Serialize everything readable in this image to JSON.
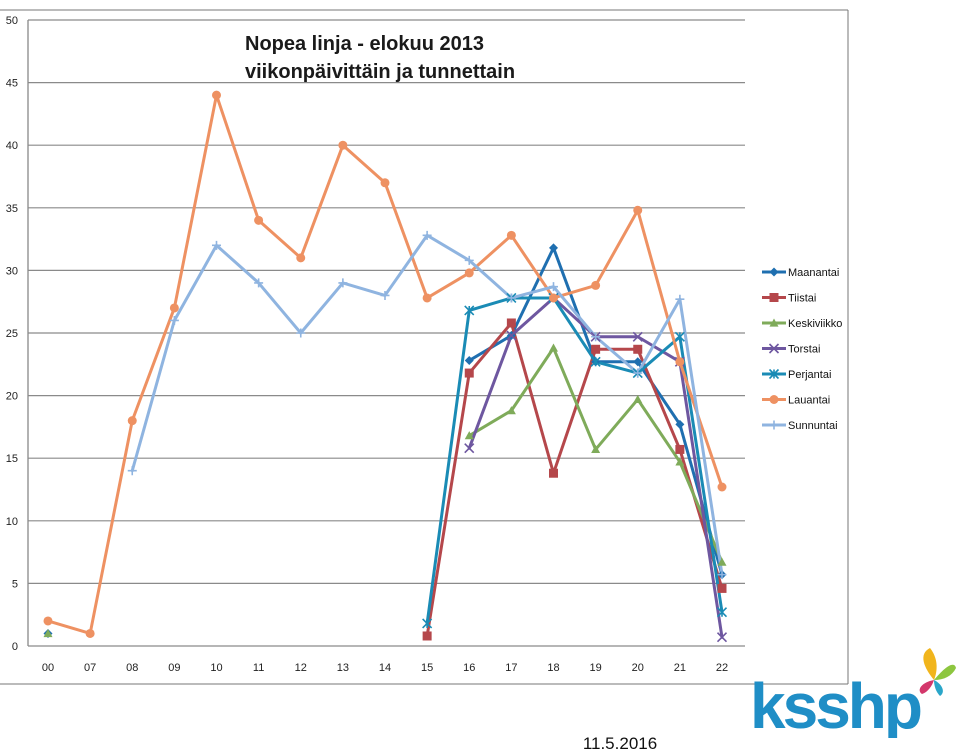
{
  "date": "11.5.2016",
  "logo_text": "ksshp",
  "colors": {
    "Maanantai": "#1f6fb0",
    "Tiistai": "#b5474b",
    "Keskiviikko": "#7fab5a",
    "Torstai": "#6e57a0",
    "Perjantai": "#1a8bb5",
    "Lauantai": "#ee9162",
    "Sunnuntai": "#8fb4e0",
    "logo_blue": "#1f8ec6"
  },
  "chart_data": {
    "type": "line",
    "title": "Nopea linja - elokuu 2013",
    "subtitle": "viikonpäivittäin ja tunnettain",
    "xlabel": "",
    "ylabel": "",
    "ylim": [
      0,
      50
    ],
    "yticks": [
      "0",
      "5",
      "10",
      "15",
      "20",
      "25",
      "30",
      "35",
      "40",
      "45",
      "50"
    ],
    "categories": [
      "00",
      "07",
      "08",
      "09",
      "10",
      "11",
      "12",
      "13",
      "14",
      "15",
      "16",
      "17",
      "18",
      "19",
      "20",
      "21",
      "22"
    ],
    "grid": true,
    "legend_position": "right",
    "series": [
      {
        "name": "Maanantai",
        "marker": "diamond",
        "values": [
          1,
          null,
          null,
          null,
          null,
          null,
          null,
          null,
          null,
          null,
          22.8,
          24.8,
          31.8,
          22.7,
          22.7,
          17.7,
          5.7
        ]
      },
      {
        "name": "Tiistai",
        "marker": "square",
        "values": [
          null,
          null,
          null,
          null,
          null,
          null,
          null,
          null,
          null,
          0.8,
          21.8,
          25.8,
          13.8,
          23.7,
          23.7,
          15.7,
          4.6
        ]
      },
      {
        "name": "Keskiviikko",
        "marker": "triangle",
        "values": [
          1,
          null,
          null,
          null,
          null,
          null,
          null,
          null,
          null,
          null,
          16.8,
          18.8,
          23.8,
          15.7,
          19.7,
          14.7,
          6.7
        ]
      },
      {
        "name": "Torstai",
        "marker": "x",
        "values": [
          null,
          null,
          null,
          null,
          null,
          null,
          null,
          null,
          null,
          null,
          15.8,
          24.8,
          27.8,
          24.7,
          24.7,
          22.7,
          0.7
        ]
      },
      {
        "name": "Perjantai",
        "marker": "star",
        "values": [
          null,
          null,
          null,
          null,
          null,
          null,
          null,
          null,
          null,
          1.8,
          26.8,
          27.8,
          27.8,
          22.7,
          21.8,
          24.7,
          2.7
        ]
      },
      {
        "name": "Lauantai",
        "marker": "circle",
        "values": [
          2,
          1,
          18,
          27,
          44,
          34,
          31,
          40,
          37,
          27.8,
          29.8,
          32.8,
          27.8,
          28.8,
          34.8,
          22.7,
          12.7
        ]
      },
      {
        "name": "Sunnuntai",
        "marker": "plus",
        "values": [
          null,
          null,
          14,
          26,
          32,
          29,
          25,
          29,
          28,
          32.8,
          30.8,
          27.8,
          28.7,
          24.7,
          21.8,
          27.7,
          5.7
        ]
      }
    ]
  }
}
